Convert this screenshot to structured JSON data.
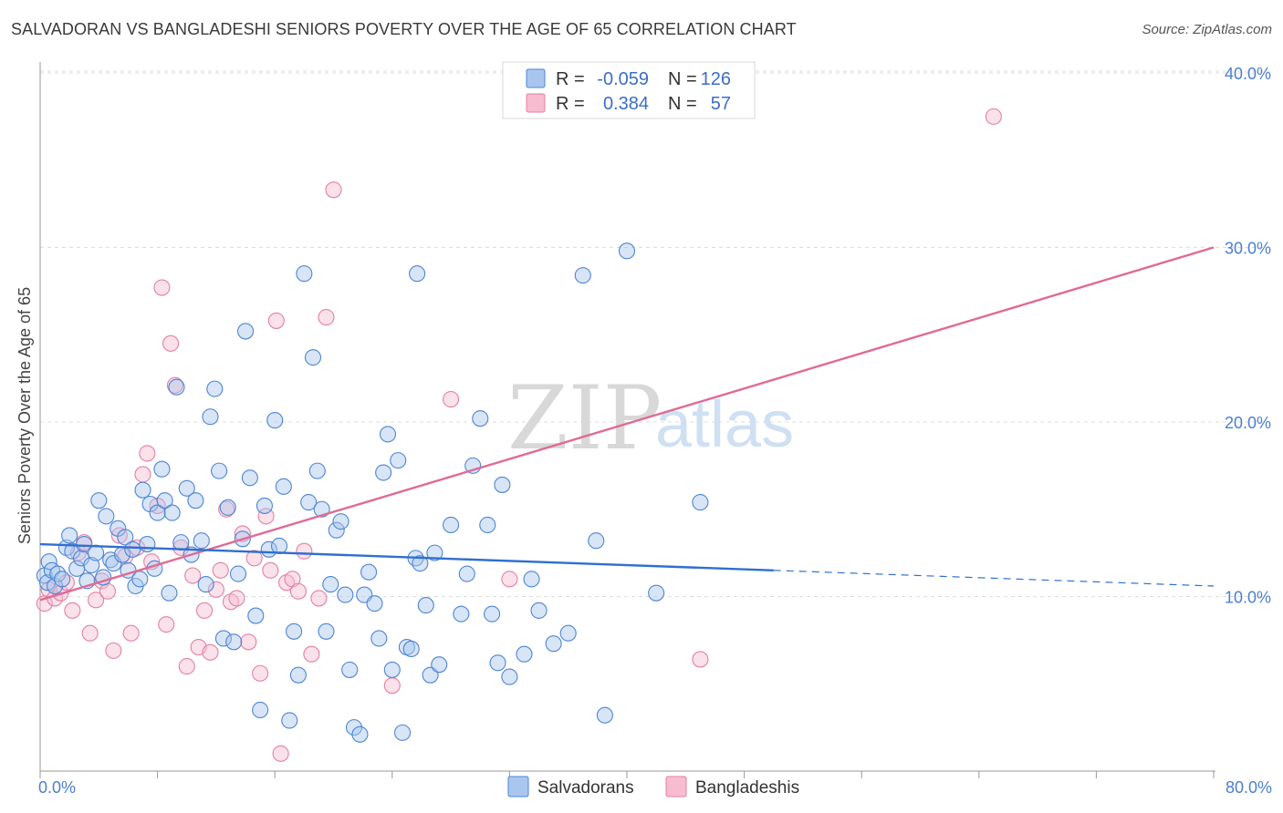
{
  "title": "SALVADORAN VS BANGLADESHI SENIORS POVERTY OVER THE AGE OF 65 CORRELATION CHART",
  "source": "Source: ZipAtlas.com",
  "watermark": {
    "zip": "ZIP",
    "atlas": "atlas"
  },
  "colors": {
    "salvadoran_fill": "#a9c6ee",
    "salvadoran_stroke": "#4d85d6",
    "salvadoran_line": "#2f6fd0",
    "bangladeshi_fill": "#f7bcd0",
    "bangladeshi_stroke": "#e57fa3",
    "bangladeshi_line": "#e06a96",
    "tick": "#4a7fd0",
    "grid": "#dddddd"
  },
  "legend": {
    "rows": [
      {
        "r_label": "R =",
        "r_value": "-0.059",
        "n_label": "N =",
        "n_value": "126"
      },
      {
        "r_label": "R =",
        "r_value": "0.384",
        "n_label": "N =",
        "n_value": "57"
      }
    ]
  },
  "chart_data": {
    "type": "scatter",
    "title": "SALVADORAN VS BANGLADESHI SENIORS POVERTY OVER THE AGE OF 65 CORRELATION CHART",
    "xlabel": "",
    "ylabel": "Seniors Poverty Over the Age of 65",
    "xlim": [
      0,
      80
    ],
    "ylim": [
      0,
      40
    ],
    "x_tick_labels": [
      "0.0%",
      "80.0%"
    ],
    "y_ticks": [
      10,
      20,
      30,
      40
    ],
    "y_tick_labels": [
      "10.0%",
      "20.0%",
      "30.0%",
      "40.0%"
    ],
    "grid": true,
    "legend_position": "top-center",
    "series": [
      {
        "name": "Salvadorans",
        "r": -0.059,
        "n": 126,
        "trend": {
          "x0": 0,
          "y0": 13.0,
          "x1": 50,
          "y1": 11.5,
          "dashed_to_x": 80,
          "dashed_to_y": 10.6
        },
        "points": [
          [
            0.3,
            11.2
          ],
          [
            0.5,
            10.8
          ],
          [
            0.6,
            12.0
          ],
          [
            0.8,
            11.5
          ],
          [
            1.0,
            10.6
          ],
          [
            1.2,
            11.3
          ],
          [
            1.5,
            11.0
          ],
          [
            1.8,
            12.8
          ],
          [
            2.0,
            13.5
          ],
          [
            2.2,
            12.6
          ],
          [
            2.5,
            11.6
          ],
          [
            2.8,
            12.2
          ],
          [
            3.0,
            13.0
          ],
          [
            3.2,
            10.9
          ],
          [
            3.5,
            11.8
          ],
          [
            3.8,
            12.5
          ],
          [
            4.0,
            15.5
          ],
          [
            4.3,
            11.1
          ],
          [
            4.5,
            14.6
          ],
          [
            4.8,
            12.1
          ],
          [
            5.0,
            11.9
          ],
          [
            5.3,
            13.9
          ],
          [
            5.6,
            12.4
          ],
          [
            5.8,
            13.4
          ],
          [
            6.0,
            11.5
          ],
          [
            6.3,
            12.7
          ],
          [
            6.5,
            10.6
          ],
          [
            6.8,
            11.0
          ],
          [
            7.0,
            16.1
          ],
          [
            7.3,
            13.0
          ],
          [
            7.5,
            15.3
          ],
          [
            7.8,
            11.6
          ],
          [
            8.0,
            14.8
          ],
          [
            8.3,
            17.3
          ],
          [
            8.5,
            15.5
          ],
          [
            8.8,
            10.2
          ],
          [
            9.0,
            14.8
          ],
          [
            9.3,
            22.0
          ],
          [
            9.6,
            13.1
          ],
          [
            10.0,
            16.2
          ],
          [
            10.3,
            12.4
          ],
          [
            10.6,
            15.5
          ],
          [
            11.0,
            13.2
          ],
          [
            11.3,
            10.7
          ],
          [
            11.6,
            20.3
          ],
          [
            11.9,
            21.9
          ],
          [
            12.2,
            17.2
          ],
          [
            12.5,
            7.6
          ],
          [
            12.8,
            15.1
          ],
          [
            13.2,
            7.4
          ],
          [
            13.5,
            11.3
          ],
          [
            13.8,
            13.3
          ],
          [
            14.0,
            25.2
          ],
          [
            14.3,
            16.8
          ],
          [
            14.7,
            8.9
          ],
          [
            15.0,
            3.5
          ],
          [
            15.3,
            15.2
          ],
          [
            15.6,
            12.7
          ],
          [
            16.0,
            20.1
          ],
          [
            16.3,
            12.9
          ],
          [
            16.6,
            16.3
          ],
          [
            17.0,
            2.9
          ],
          [
            17.3,
            8.0
          ],
          [
            17.6,
            5.5
          ],
          [
            18.0,
            28.5
          ],
          [
            18.3,
            15.4
          ],
          [
            18.6,
            23.7
          ],
          [
            18.9,
            17.2
          ],
          [
            19.2,
            15.0
          ],
          [
            19.5,
            8.0
          ],
          [
            19.8,
            10.7
          ],
          [
            20.2,
            13.8
          ],
          [
            20.5,
            14.3
          ],
          [
            20.8,
            10.1
          ],
          [
            21.1,
            5.8
          ],
          [
            21.4,
            2.5
          ],
          [
            21.8,
            2.1
          ],
          [
            22.1,
            10.1
          ],
          [
            22.4,
            11.4
          ],
          [
            22.8,
            9.6
          ],
          [
            23.1,
            7.6
          ],
          [
            23.4,
            17.1
          ],
          [
            23.7,
            19.3
          ],
          [
            24.0,
            5.8
          ],
          [
            24.4,
            17.8
          ],
          [
            24.7,
            2.2
          ],
          [
            25.0,
            7.1
          ],
          [
            25.3,
            7.0
          ],
          [
            25.6,
            12.2
          ],
          [
            25.9,
            11.9
          ],
          [
            26.3,
            9.5
          ],
          [
            26.6,
            5.5
          ],
          [
            26.9,
            12.5
          ],
          [
            27.2,
            6.1
          ],
          [
            28.0,
            14.1
          ],
          [
            28.7,
            9.0
          ],
          [
            29.1,
            11.3
          ],
          [
            29.5,
            17.5
          ],
          [
            30.0,
            20.2
          ],
          [
            30.5,
            14.1
          ],
          [
            30.8,
            9.0
          ],
          [
            31.2,
            6.2
          ],
          [
            31.5,
            16.4
          ],
          [
            32.0,
            5.4
          ],
          [
            33.0,
            6.7
          ],
          [
            33.5,
            11.0
          ],
          [
            34.0,
            9.2
          ],
          [
            35.0,
            7.3
          ],
          [
            36.0,
            7.9
          ],
          [
            37.0,
            28.4
          ],
          [
            37.9,
            13.2
          ],
          [
            38.5,
            3.2
          ],
          [
            40.0,
            29.8
          ],
          [
            42.0,
            10.2
          ],
          [
            45.0,
            15.4
          ],
          [
            25.7,
            28.5
          ]
        ]
      },
      {
        "name": "Bangladeshis",
        "r": 0.384,
        "n": 57,
        "trend": {
          "x0": 0,
          "y0": 9.8,
          "x1": 80,
          "y1": 30.0
        },
        "points": [
          [
            0.3,
            9.6
          ],
          [
            0.6,
            10.4
          ],
          [
            1.0,
            9.9
          ],
          [
            1.4,
            10.2
          ],
          [
            1.8,
            10.8
          ],
          [
            2.2,
            9.2
          ],
          [
            2.6,
            12.5
          ],
          [
            3.0,
            13.1
          ],
          [
            3.4,
            7.9
          ],
          [
            3.8,
            9.8
          ],
          [
            4.2,
            10.9
          ],
          [
            4.6,
            10.3
          ],
          [
            5.0,
            6.9
          ],
          [
            5.4,
            13.5
          ],
          [
            5.8,
            12.3
          ],
          [
            6.2,
            7.9
          ],
          [
            6.6,
            12.8
          ],
          [
            7.0,
            17.0
          ],
          [
            7.3,
            18.2
          ],
          [
            7.6,
            12.0
          ],
          [
            8.0,
            15.2
          ],
          [
            8.3,
            27.7
          ],
          [
            8.6,
            8.4
          ],
          [
            8.9,
            24.5
          ],
          [
            9.2,
            22.1
          ],
          [
            9.6,
            12.8
          ],
          [
            10.0,
            6.0
          ],
          [
            10.4,
            11.2
          ],
          [
            10.8,
            7.1
          ],
          [
            11.2,
            9.2
          ],
          [
            11.6,
            6.8
          ],
          [
            12.0,
            10.4
          ],
          [
            12.3,
            11.5
          ],
          [
            12.7,
            15.0
          ],
          [
            13.0,
            9.7
          ],
          [
            13.4,
            9.9
          ],
          [
            13.8,
            13.6
          ],
          [
            14.2,
            7.4
          ],
          [
            14.6,
            12.2
          ],
          [
            15.0,
            5.6
          ],
          [
            15.4,
            14.6
          ],
          [
            15.7,
            11.5
          ],
          [
            16.1,
            25.8
          ],
          [
            16.4,
            1.0
          ],
          [
            16.8,
            10.8
          ],
          [
            17.2,
            11.0
          ],
          [
            17.6,
            10.3
          ],
          [
            18.0,
            12.6
          ],
          [
            18.5,
            6.7
          ],
          [
            19.0,
            9.9
          ],
          [
            19.5,
            26.0
          ],
          [
            20.0,
            33.3
          ],
          [
            28.0,
            21.3
          ],
          [
            32.0,
            11.0
          ],
          [
            45.0,
            6.4
          ],
          [
            65.0,
            37.5
          ],
          [
            24.0,
            4.9
          ]
        ]
      }
    ]
  },
  "bottom_legend": [
    {
      "label": "Salvadorans"
    },
    {
      "label": "Bangladeshis"
    }
  ]
}
